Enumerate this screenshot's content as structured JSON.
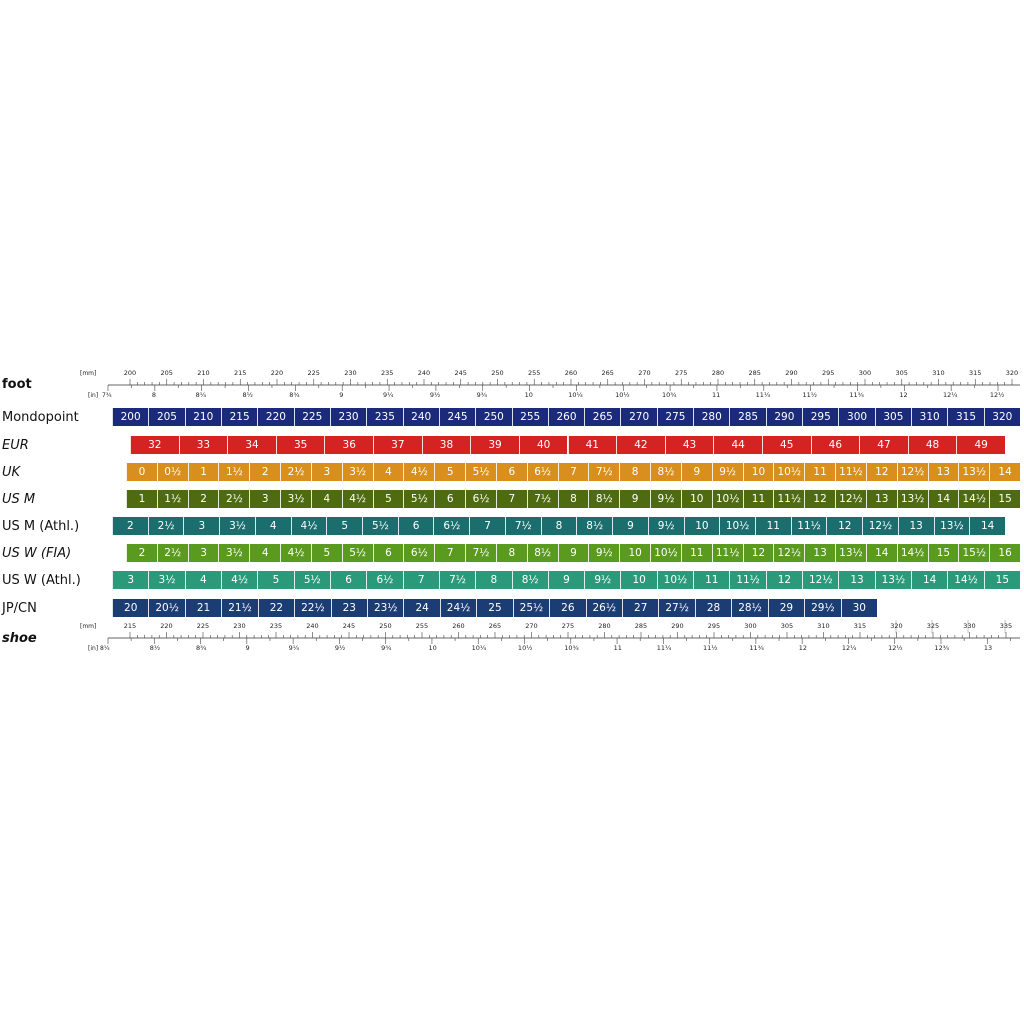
{
  "labels": {
    "foot": "foot",
    "shoe": "shoe",
    "mm": "[mm]",
    "in": "[in]",
    "foot_in_start": "7¾",
    "shoe_in_start": "8¼"
  },
  "foot_scale": {
    "mm": [
      "200",
      "205",
      "210",
      "215",
      "220",
      "225",
      "230",
      "235",
      "240",
      "245",
      "250",
      "255",
      "260",
      "265",
      "270",
      "275",
      "280",
      "285",
      "290",
      "295",
      "300",
      "305",
      "310",
      "315",
      "320"
    ],
    "in": [
      "8",
      "8¼",
      "8½",
      "8¾",
      "9",
      "9¼",
      "9½",
      "9¾",
      "10",
      "10¼",
      "10½",
      "10¾",
      "11",
      "11¼",
      "11½",
      "11¾",
      "12",
      "12¼",
      "12½"
    ]
  },
  "shoe_scale": {
    "mm": [
      "215",
      "220",
      "225",
      "230",
      "235",
      "240",
      "245",
      "250",
      "255",
      "260",
      "265",
      "270",
      "275",
      "280",
      "285",
      "290",
      "295",
      "300",
      "305",
      "310",
      "315",
      "320",
      "325",
      "330",
      "335"
    ],
    "in": [
      "8½",
      "8¾",
      "9",
      "9¼",
      "9½",
      "9¾",
      "10",
      "10¼",
      "10½",
      "10¾",
      "11",
      "11¼",
      "11½",
      "11¾",
      "12",
      "12¼",
      "12½",
      "12¾",
      "13"
    ]
  },
  "rows": [
    {
      "label": "Mondopoint",
      "style": "normal",
      "color": "#1b2a7a",
      "values": [
        "200",
        "205",
        "210",
        "215",
        "220",
        "225",
        "230",
        "235",
        "240",
        "245",
        "250",
        "255",
        "260",
        "265",
        "270",
        "275",
        "280",
        "285",
        "290",
        "295",
        "300",
        "305",
        "310",
        "315",
        "320"
      ]
    },
    {
      "label": "EUR",
      "style": "italic",
      "color": "#d42323",
      "values": [
        "32",
        "33",
        "34",
        "35",
        "36",
        "37",
        "38",
        "39",
        "40",
        "41",
        "42",
        "43",
        "44",
        "45",
        "46",
        "47",
        "48",
        "49"
      ]
    },
    {
      "label": "UK",
      "style": "italic",
      "color": "#d88f1e",
      "values": [
        "0",
        "0½",
        "1",
        "1½",
        "2",
        "2½",
        "3",
        "3½",
        "4",
        "4½",
        "5",
        "5½",
        "6",
        "6½",
        "7",
        "7½",
        "8",
        "8½",
        "9",
        "9½",
        "10",
        "10½",
        "11",
        "11½",
        "12",
        "12½",
        "13",
        "13½",
        "14"
      ]
    },
    {
      "label": "US M",
      "style": "italic",
      "color": "#4f6b12",
      "values": [
        "1",
        "1½",
        "2",
        "2½",
        "3",
        "3½",
        "4",
        "4½",
        "5",
        "5½",
        "6",
        "6½",
        "7",
        "7½",
        "8",
        "8½",
        "9",
        "9½",
        "10",
        "10½",
        "11",
        "11½",
        "12",
        "12½",
        "13",
        "13½",
        "14",
        "14½",
        "15"
      ]
    },
    {
      "label": "US M (Athl.)",
      "style": "normal",
      "color": "#1a6e6e",
      "values": [
        "2",
        "2½",
        "3",
        "3½",
        "4",
        "4½",
        "5",
        "5½",
        "6",
        "6½",
        "7",
        "7½",
        "8",
        "8½",
        "9",
        "9½",
        "10",
        "10½",
        "11",
        "11½",
        "12",
        "12½",
        "13",
        "13½",
        "14"
      ]
    },
    {
      "label": "US W (FIA)",
      "style": "italic",
      "color": "#5a9a1e",
      "values": [
        "2",
        "2½",
        "3",
        "3½",
        "4",
        "4½",
        "5",
        "5½",
        "6",
        "6½",
        "7",
        "7½",
        "8",
        "8½",
        "9",
        "9½",
        "10",
        "10½",
        "11",
        "11½",
        "12",
        "12½",
        "13",
        "13½",
        "14",
        "14½",
        "15",
        "15½",
        "16"
      ]
    },
    {
      "label": "US W (Athl.)",
      "style": "normal",
      "color": "#2a9a7a",
      "values": [
        "3",
        "3½",
        "4",
        "4½",
        "5",
        "5½",
        "6",
        "6½",
        "7",
        "7½",
        "8",
        "8½",
        "9",
        "9½",
        "10",
        "10½",
        "11",
        "11½",
        "12",
        "12½",
        "13",
        "13½",
        "14",
        "14½",
        "15"
      ]
    },
    {
      "label": "JP/CN",
      "style": "normal",
      "color": "#1c3d73",
      "values": [
        "20",
        "20½",
        "21",
        "21½",
        "22",
        "22½",
        "23",
        "23½",
        "24",
        "24½",
        "25",
        "25½",
        "26",
        "26½",
        "27",
        "27½",
        "28",
        "28½",
        "29",
        "29½",
        "30"
      ]
    }
  ]
}
